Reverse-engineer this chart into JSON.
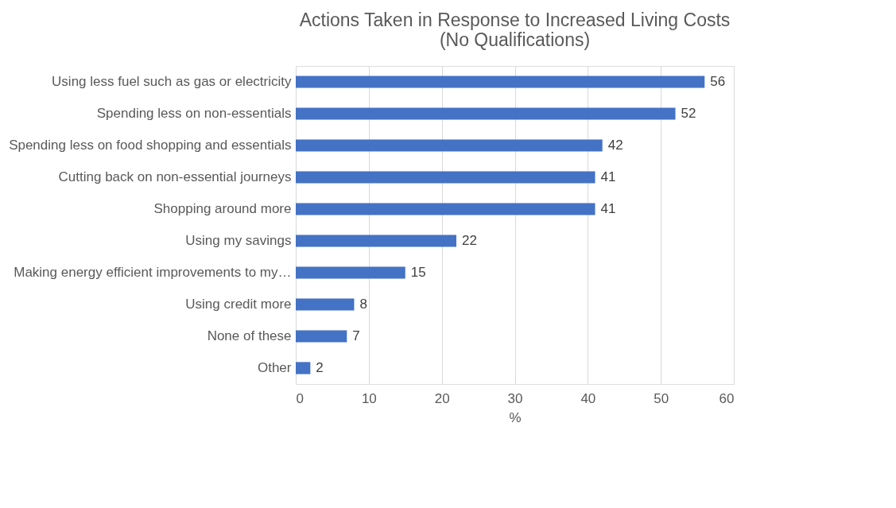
{
  "chart_data": {
    "type": "bar",
    "orientation": "horizontal",
    "title": "Actions Taken in Response to Increased Living Costs (No Qualifications)",
    "categories": [
      "Using less fuel such as gas or electricity",
      "Spending less on non-essentials",
      "Spending less on food shopping and essentials",
      "Cutting back on non-essential journeys",
      "Shopping around more",
      "Using my savings",
      "Making energy efficient improvements to my…",
      "Using credit more",
      "None of these",
      "Other"
    ],
    "values": [
      56,
      52,
      42,
      41,
      41,
      22,
      15,
      8,
      7,
      2
    ],
    "color": "#4472c4",
    "xlim": [
      0,
      60
    ],
    "xticks": [
      0,
      10,
      20,
      30,
      40,
      50,
      60
    ],
    "xlabel": "%",
    "grid": "x",
    "data_labels": true
  }
}
